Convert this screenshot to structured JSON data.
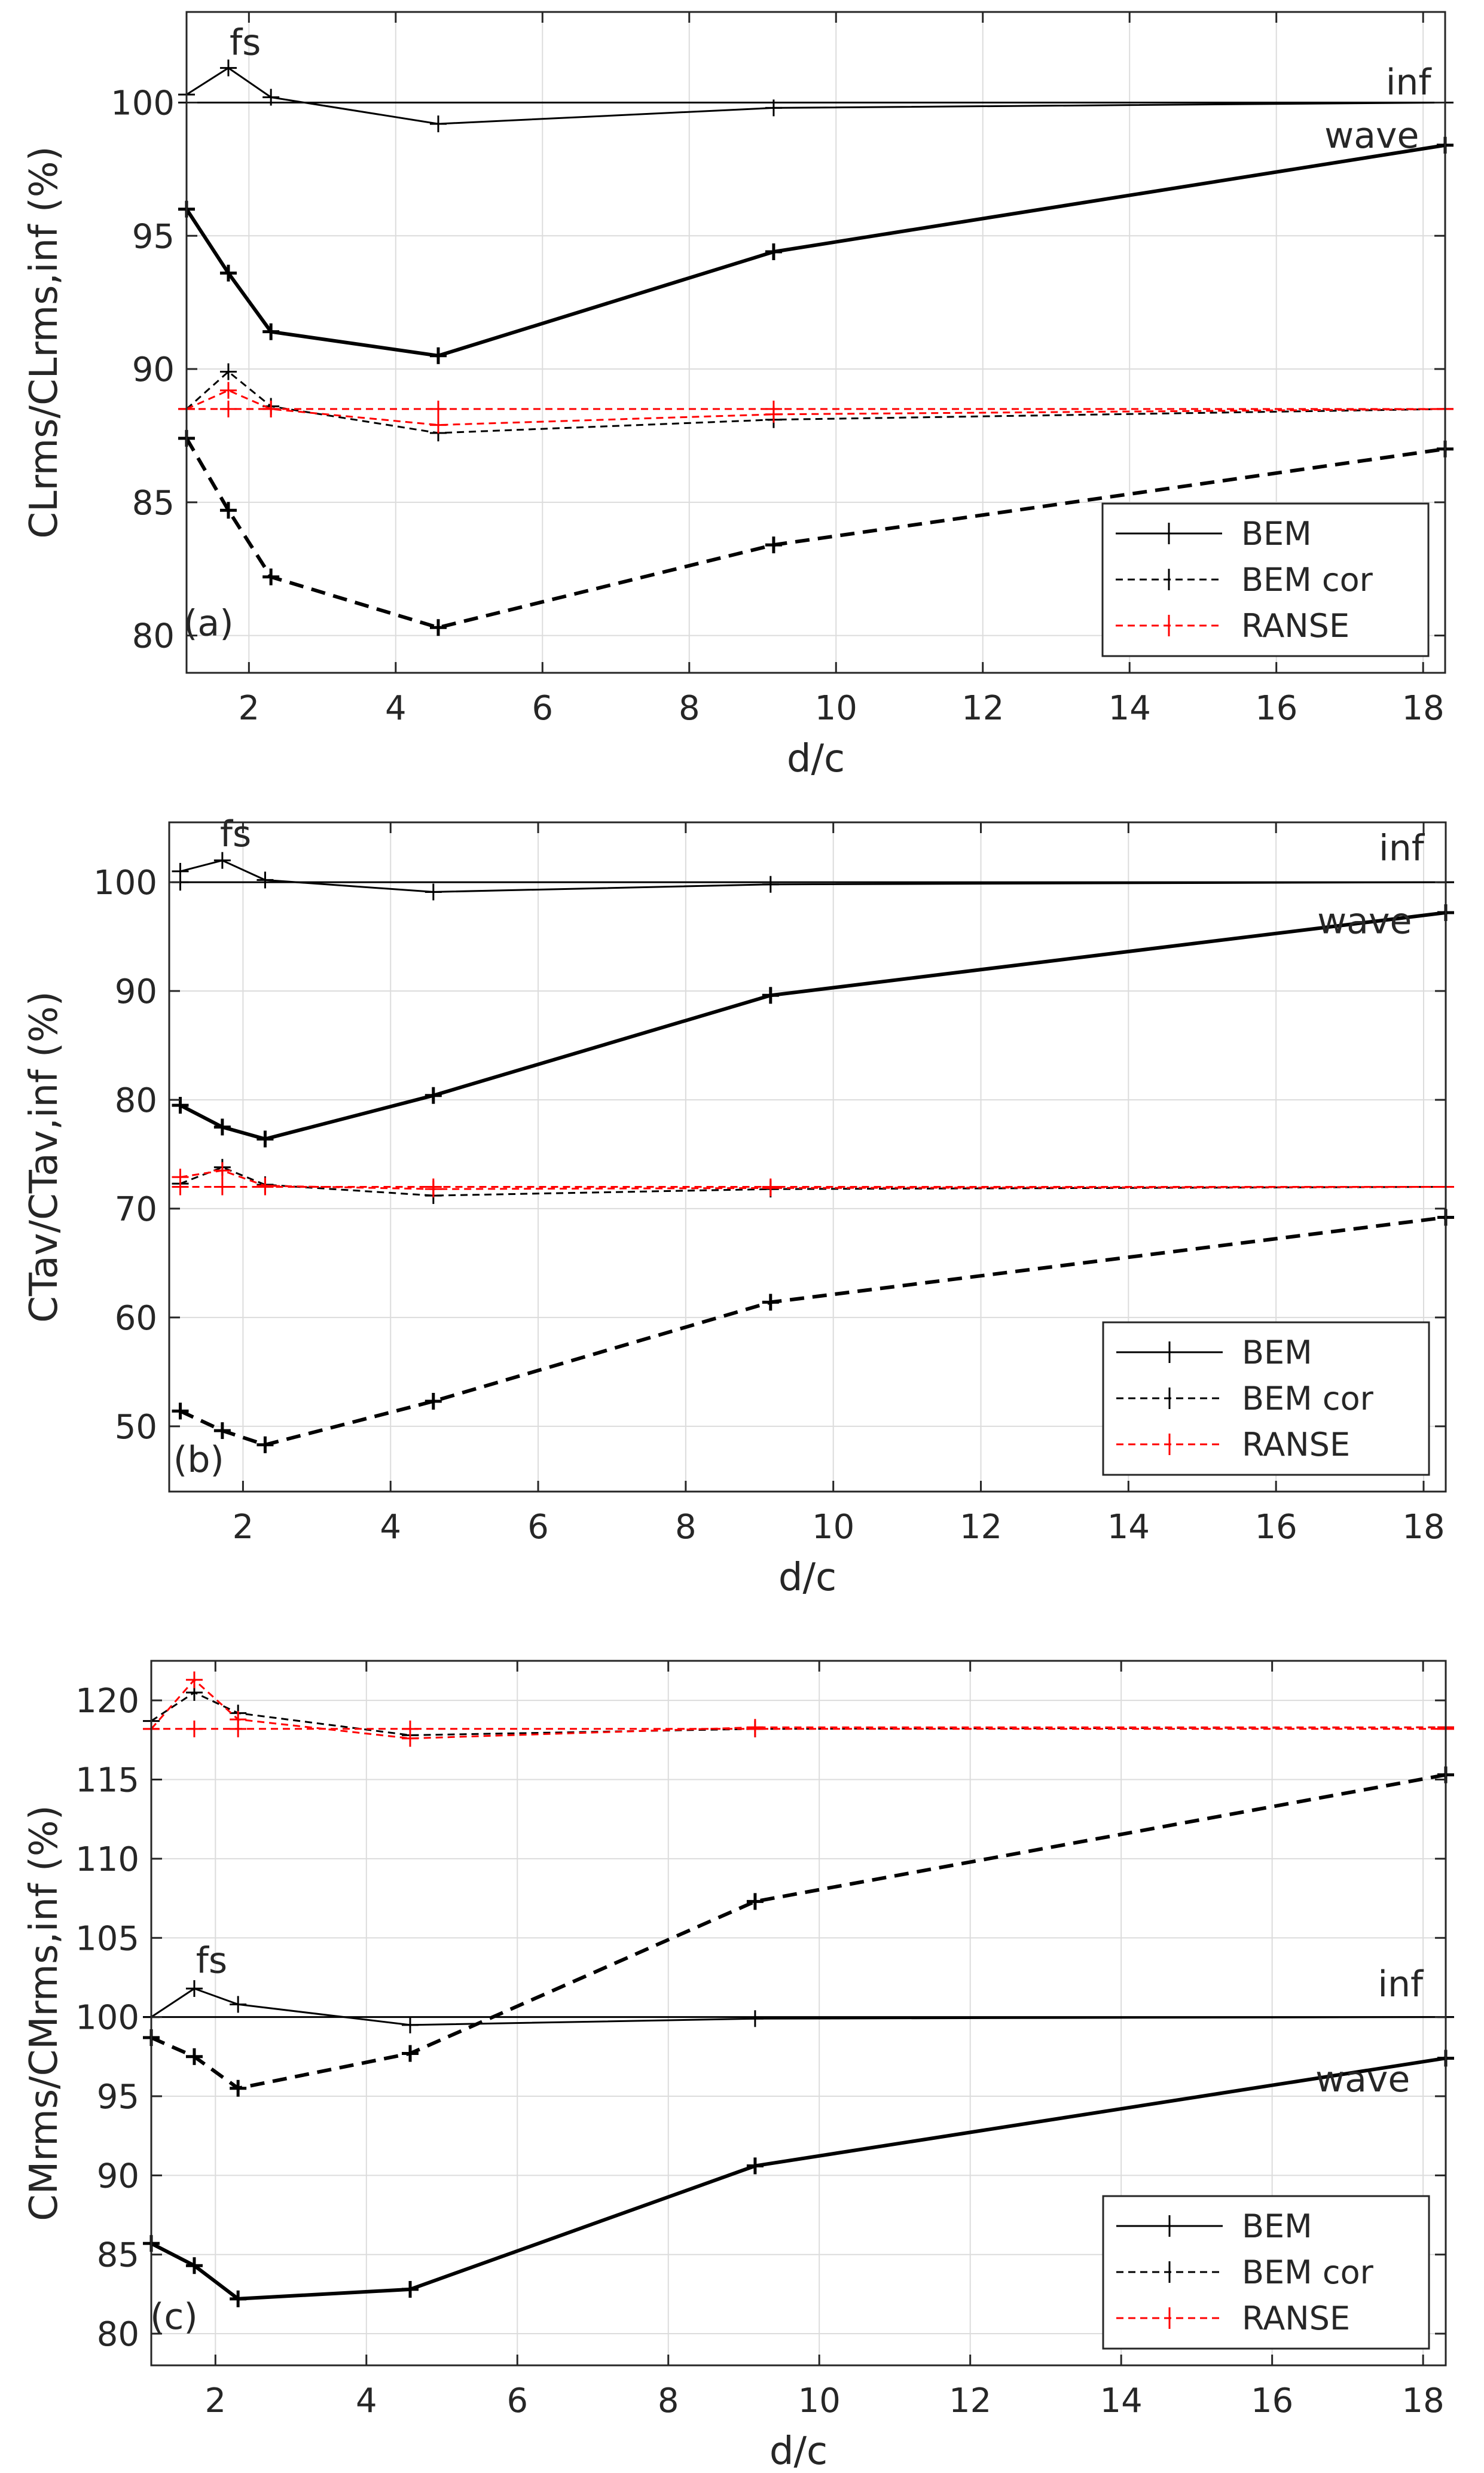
{
  "chart_data": [
    {
      "type": "line",
      "panel_label": "(a)",
      "xlabel": "d/c",
      "ylabel": "CLrms/CLrms,inf (%)",
      "xlim": [
        1.15,
        18.3
      ],
      "ylim": [
        78.6,
        103.4
      ],
      "xticks": [
        2,
        4,
        6,
        8,
        10,
        12,
        14,
        16,
        18
      ],
      "yticks": [
        80,
        85,
        90,
        95,
        100
      ],
      "grid": true,
      "legend": {
        "placement": "bottom-right",
        "entries": [
          "BEM",
          "BEM cor",
          "RANSE"
        ]
      },
      "annotations": [
        {
          "text": "fs",
          "x": 1.95,
          "y": 101.8
        },
        {
          "text": "inf",
          "x": 17.8,
          "y": 100.3
        },
        {
          "text": "wave",
          "x": 17.3,
          "y": 98.3
        },
        {
          "text": "(a)",
          "x": 1.45,
          "y": 80.0
        }
      ],
      "series": [
        {
          "name": "BEM",
          "group": "fs",
          "style": "solid",
          "color": "#000000",
          "width": "thin",
          "x": [
            1.15,
            1.72,
            2.3,
            4.58,
            9.15,
            18.3
          ],
          "y": [
            100.3,
            101.3,
            100.2,
            99.2,
            99.8,
            100.0
          ]
        },
        {
          "name": "BEM",
          "group": "inf",
          "style": "solid",
          "color": "#000000",
          "width": "thin",
          "x": [
            1.15,
            18.3
          ],
          "y": [
            100.0,
            100.0
          ]
        },
        {
          "name": "BEM",
          "group": "wave",
          "style": "solid",
          "color": "#000000",
          "width": "thick",
          "x": [
            1.15,
            1.72,
            2.3,
            4.58,
            9.15,
            18.3
          ],
          "y": [
            96.0,
            93.6,
            91.4,
            90.5,
            94.4,
            98.4
          ]
        },
        {
          "name": "BEM cor",
          "group": "fs",
          "style": "dashed",
          "color": "#000000",
          "width": "thin",
          "x": [
            1.15,
            1.72,
            2.3,
            4.58,
            9.15,
            18.3
          ],
          "y": [
            88.5,
            89.9,
            88.6,
            87.6,
            88.1,
            88.5
          ]
        },
        {
          "name": "BEM cor",
          "group": "wave",
          "style": "dashed",
          "color": "#000000",
          "width": "thick",
          "x": [
            1.15,
            1.72,
            2.3,
            4.58,
            9.15,
            18.3
          ],
          "y": [
            87.4,
            84.7,
            82.2,
            80.3,
            83.4,
            87.0
          ]
        },
        {
          "name": "RANSE",
          "group": "fs",
          "style": "dashed",
          "color": "#ff0000",
          "width": "thin",
          "x": [
            1.15,
            1.72,
            2.3,
            4.58,
            9.15,
            18.3
          ],
          "y": [
            88.5,
            89.2,
            88.5,
            87.9,
            88.3,
            88.5
          ]
        },
        {
          "name": "RANSE",
          "group": "inf",
          "style": "dashed",
          "color": "#ff0000",
          "width": "thin",
          "x": [
            1.15,
            1.72,
            2.3,
            4.58,
            9.15,
            18.3
          ],
          "y": [
            88.5,
            88.5,
            88.5,
            88.5,
            88.5,
            88.5
          ]
        }
      ]
    },
    {
      "type": "line",
      "panel_label": "(b)",
      "xlabel": "d/c",
      "ylabel": "CTav/CTav,inf (%)",
      "xlim": [
        1.0,
        18.3
      ],
      "ylim": [
        44.0,
        105.5
      ],
      "xticks": [
        2,
        4,
        6,
        8,
        10,
        12,
        14,
        16,
        18
      ],
      "yticks": [
        50,
        60,
        70,
        80,
        90,
        100
      ],
      "grid": true,
      "legend": {
        "placement": "bottom-right",
        "entries": [
          "BEM",
          "BEM cor",
          "RANSE"
        ]
      },
      "annotations": [
        {
          "text": "fs",
          "x": 1.9,
          "y": 103.3
        },
        {
          "text": "inf",
          "x": 17.7,
          "y": 102.0
        },
        {
          "text": "wave",
          "x": 17.2,
          "y": 95.3
        },
        {
          "text": "(b)",
          "x": 1.4,
          "y": 45.8
        }
      ],
      "series": [
        {
          "name": "BEM",
          "group": "fs",
          "style": "solid",
          "color": "#000000",
          "width": "thin",
          "x": [
            1.15,
            1.72,
            2.3,
            4.58,
            9.15,
            18.3
          ],
          "y": [
            101.0,
            102.0,
            100.2,
            99.1,
            99.8,
            100.0
          ]
        },
        {
          "name": "BEM",
          "group": "inf",
          "style": "solid",
          "color": "#000000",
          "width": "thin",
          "x": [
            1.15,
            18.3
          ],
          "y": [
            100.0,
            100.0
          ]
        },
        {
          "name": "BEM",
          "group": "wave",
          "style": "solid",
          "color": "#000000",
          "width": "thick",
          "x": [
            1.15,
            1.72,
            2.3,
            4.58,
            9.15,
            18.3
          ],
          "y": [
            79.5,
            77.5,
            76.4,
            80.4,
            89.6,
            97.2
          ]
        },
        {
          "name": "BEM cor",
          "group": "fs",
          "style": "dashed",
          "color": "#000000",
          "width": "thin",
          "x": [
            1.15,
            1.72,
            2.3,
            4.58,
            9.15,
            18.3
          ],
          "y": [
            72.3,
            73.8,
            72.2,
            71.2,
            71.8,
            72.0
          ]
        },
        {
          "name": "BEM cor",
          "group": "wave",
          "style": "dashed",
          "color": "#000000",
          "width": "thick",
          "x": [
            1.15,
            1.72,
            2.3,
            4.58,
            9.15,
            18.3
          ],
          "y": [
            51.4,
            49.6,
            48.3,
            52.3,
            61.4,
            69.2
          ]
        },
        {
          "name": "RANSE",
          "group": "fs",
          "style": "dashed",
          "color": "#ff0000",
          "width": "thin",
          "x": [
            1.15,
            1.72,
            2.3,
            4.58,
            9.15,
            18.3
          ],
          "y": [
            72.9,
            73.5,
            72.1,
            71.8,
            71.9,
            72.0
          ]
        },
        {
          "name": "RANSE",
          "group": "inf",
          "style": "dashed",
          "color": "#ff0000",
          "width": "thin",
          "x": [
            1.15,
            1.72,
            2.3,
            4.58,
            9.15,
            18.3
          ],
          "y": [
            72.0,
            72.0,
            72.0,
            72.0,
            72.0,
            72.0
          ]
        }
      ]
    },
    {
      "type": "line",
      "panel_label": "(c)",
      "xlabel": "d/c",
      "ylabel": "CMrms/CMrms,inf (%)",
      "xlim": [
        1.15,
        18.3
      ],
      "ylim": [
        78.0,
        122.5
      ],
      "xticks": [
        2,
        4,
        6,
        8,
        10,
        12,
        14,
        16,
        18
      ],
      "yticks": [
        80,
        85,
        90,
        95,
        100,
        105,
        110,
        115,
        120
      ],
      "grid": true,
      "legend": {
        "placement": "bottom-right",
        "entries": [
          "BEM",
          "BEM cor",
          "RANSE"
        ]
      },
      "annotations": [
        {
          "text": "fs",
          "x": 1.95,
          "y": 102.8
        },
        {
          "text": "inf",
          "x": 17.7,
          "y": 101.3
        },
        {
          "text": "wave",
          "x": 17.2,
          "y": 95.3
        },
        {
          "text": "(c)",
          "x": 1.45,
          "y": 80.3
        }
      ],
      "series": [
        {
          "name": "BEM",
          "group": "fs",
          "style": "solid",
          "color": "#000000",
          "width": "thin",
          "x": [
            1.15,
            1.72,
            2.3,
            4.58,
            9.15,
            18.3
          ],
          "y": [
            100.0,
            101.8,
            100.8,
            99.5,
            99.9,
            100.0
          ]
        },
        {
          "name": "BEM",
          "group": "inf",
          "style": "solid",
          "color": "#000000",
          "width": "thin",
          "x": [
            1.15,
            18.3
          ],
          "y": [
            100.0,
            100.0
          ]
        },
        {
          "name": "BEM",
          "group": "wave",
          "style": "solid",
          "color": "#000000",
          "width": "thick",
          "x": [
            1.15,
            1.72,
            2.3,
            4.58,
            9.15,
            18.3
          ],
          "y": [
            85.7,
            84.3,
            82.2,
            82.8,
            90.6,
            97.4
          ]
        },
        {
          "name": "BEM cor",
          "group": "fs",
          "style": "dashed",
          "color": "#000000",
          "width": "thin",
          "x": [
            1.15,
            1.72,
            2.3,
            4.58,
            9.15,
            18.3
          ],
          "y": [
            118.7,
            120.5,
            119.2,
            117.8,
            118.2,
            118.3
          ]
        },
        {
          "name": "BEM cor",
          "group": "wave",
          "style": "dashed",
          "color": "#000000",
          "width": "thick",
          "x": [
            1.15,
            1.72,
            2.3,
            4.58,
            9.15,
            18.3
          ],
          "y": [
            98.7,
            97.5,
            95.5,
            97.7,
            107.3,
            115.3
          ]
        },
        {
          "name": "RANSE",
          "group": "fs",
          "style": "dashed",
          "color": "#ff0000",
          "width": "thin",
          "x": [
            1.15,
            1.72,
            2.3,
            4.58,
            9.15,
            18.3
          ],
          "y": [
            118.2,
            121.3,
            118.8,
            117.6,
            118.3,
            118.3
          ]
        },
        {
          "name": "RANSE",
          "group": "inf",
          "style": "dashed",
          "color": "#ff0000",
          "width": "thin",
          "x": [
            1.15,
            1.72,
            2.3,
            4.58,
            9.15,
            18.3
          ],
          "y": [
            118.2,
            118.2,
            118.2,
            118.2,
            118.2,
            118.2
          ]
        }
      ]
    }
  ]
}
